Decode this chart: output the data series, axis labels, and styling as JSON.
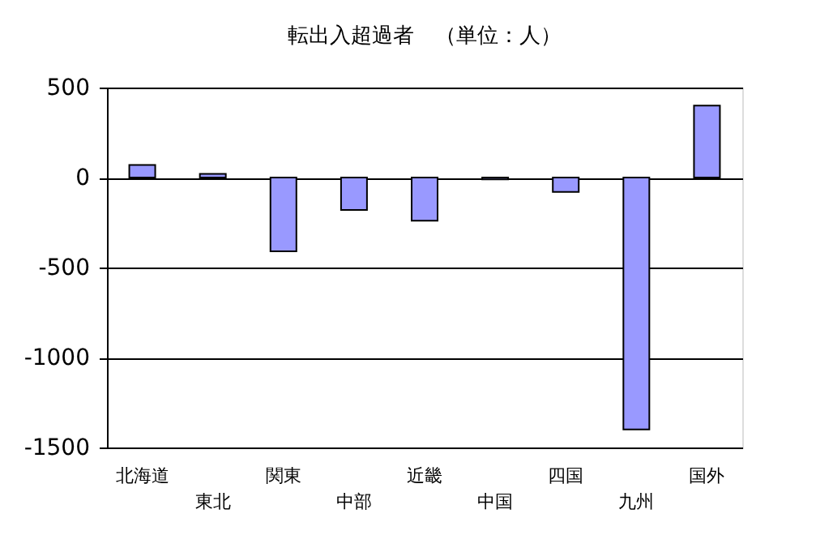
{
  "chart_data": {
    "type": "bar",
    "title": "転出入超過者　（単位：人）",
    "categories": [
      "北海道",
      "東北",
      "関東",
      "中部",
      "近畿",
      "中国",
      "四国",
      "九州",
      "国外"
    ],
    "values": [
      70,
      20,
      -410,
      -180,
      -240,
      -10,
      -80,
      -1400,
      400
    ],
    "color": "#9999ff",
    "ylim": [
      -1500,
      500
    ],
    "yticks": [
      -1500,
      -1000,
      -500,
      0,
      500
    ],
    "grid": "y"
  }
}
